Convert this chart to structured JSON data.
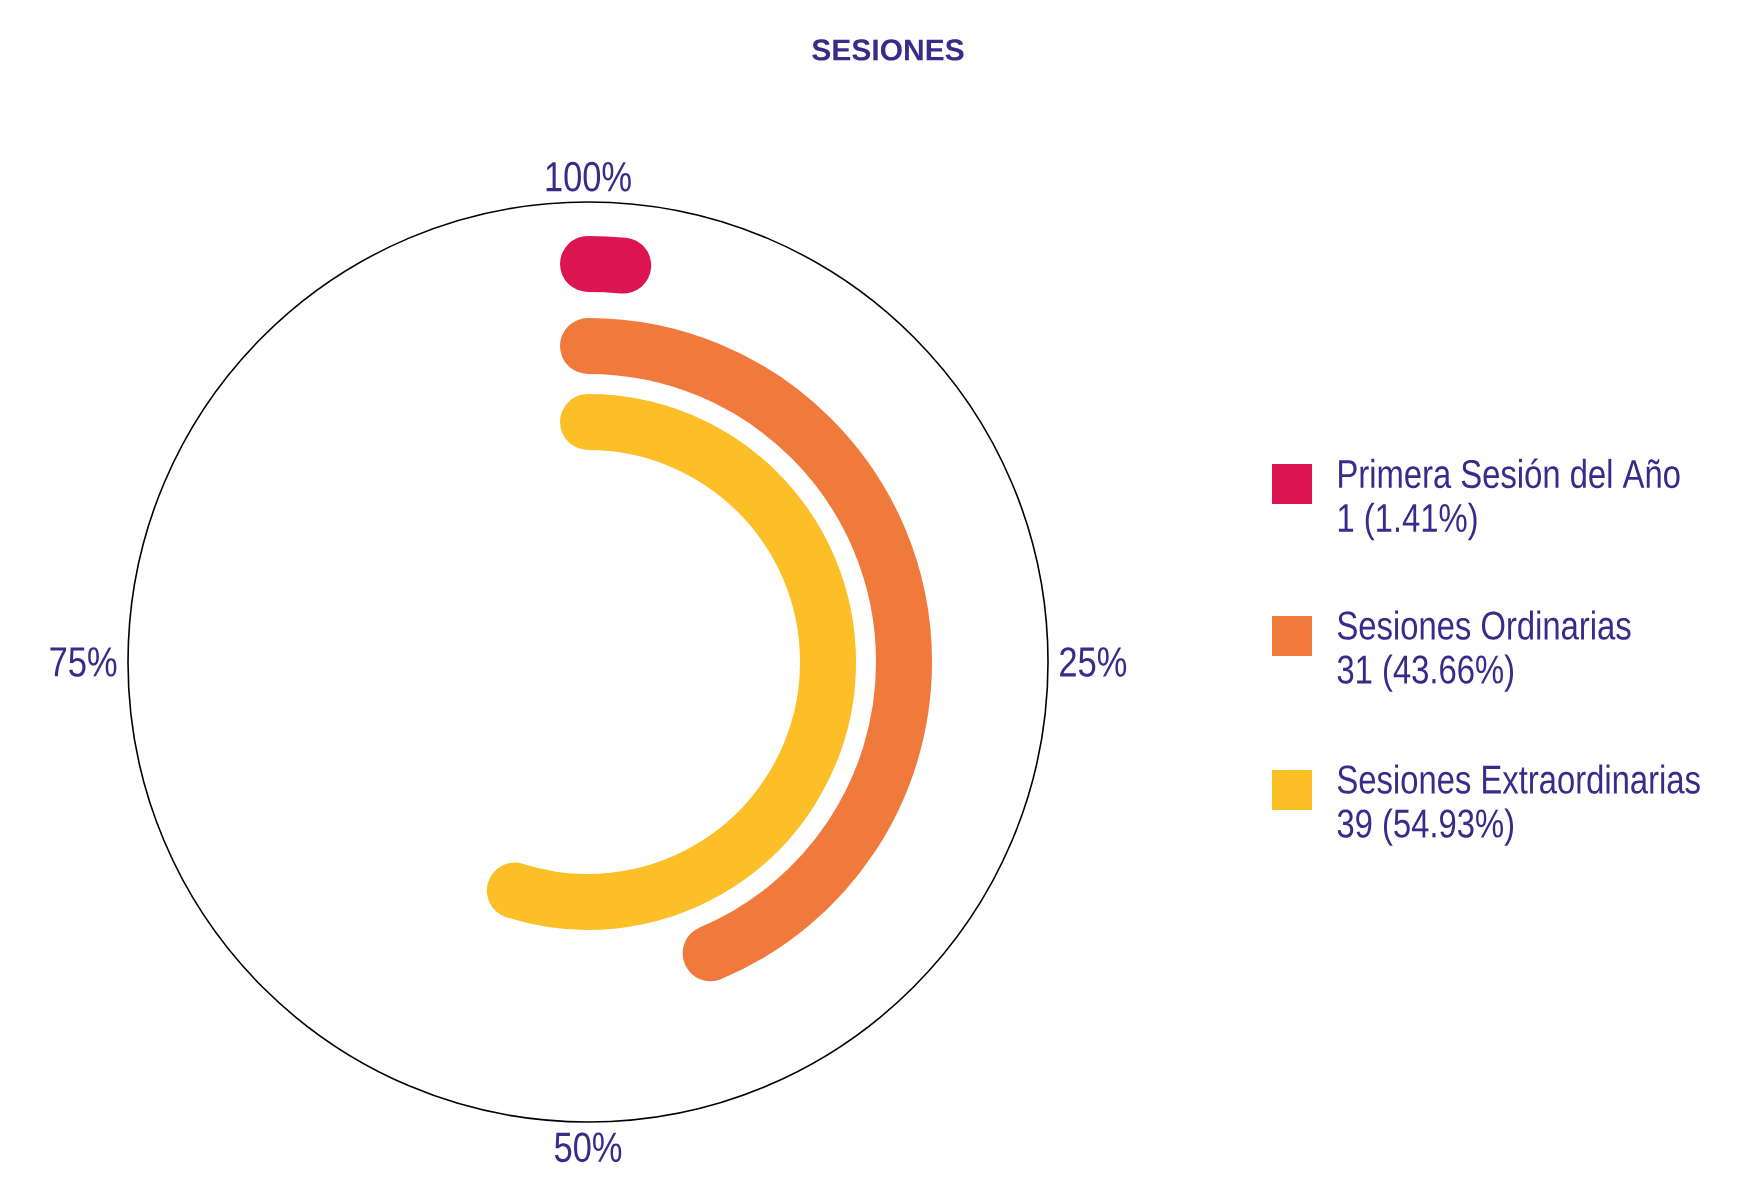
{
  "chart_data": {
    "type": "other",
    "title": "SESIONES",
    "categories": [
      "Primera Sesión del Año",
      "Sesiones Ordinarias",
      "Sesiones Extraordinarias"
    ],
    "values": [
      1.41,
      43.66,
      54.93
    ],
    "value_labels": [
      "1 (1.41%)",
      "31 (43.66%)",
      "39 (54.93%)"
    ],
    "colors": [
      "#dc1551",
      "#f07a3b",
      "#fdbf28"
    ],
    "annotations": [
      "100%",
      "25%",
      "50%",
      "75%"
    ]
  }
}
